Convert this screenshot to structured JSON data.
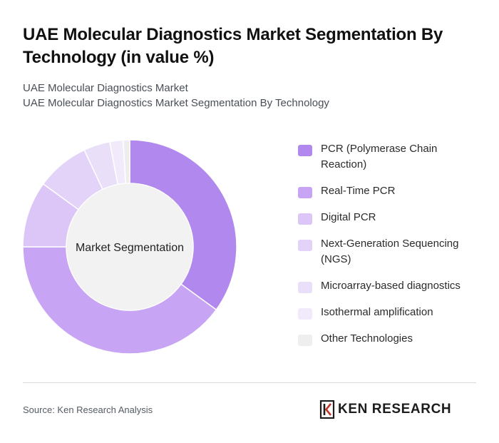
{
  "header": {
    "title": "UAE Molecular Diagnostics Market Segmentation By Technology (in value %)",
    "subtitle_1": "UAE Molecular Diagnostics Market",
    "subtitle_2": "UAE Molecular Diagnostics Market Segmentation By Technology"
  },
  "chart_data": {
    "type": "pie",
    "donut": true,
    "center_label": "Market Segmentation",
    "title": "",
    "categories": [
      "PCR (Polymerase Chain Reaction)",
      "Real-Time PCR",
      "Digital PCR",
      "Next-Generation Sequencing (NGS)",
      "Microarray-based diagnostics",
      "Isothermal amplification",
      "Other Technologies"
    ],
    "values": [
      35,
      40,
      10,
      8,
      4,
      2,
      1
    ],
    "colors": [
      "#b088ee",
      "#c8a5f4",
      "#dcc6f8",
      "#e3d3f9",
      "#eadff9",
      "#f1eafa",
      "#eeeeee"
    ],
    "legend_position": "right"
  },
  "footer": {
    "source": "Source: Ken Research Analysis",
    "logo_text": "KEN RESEARCH",
    "logo_icon": "ken-research-logo-icon"
  }
}
